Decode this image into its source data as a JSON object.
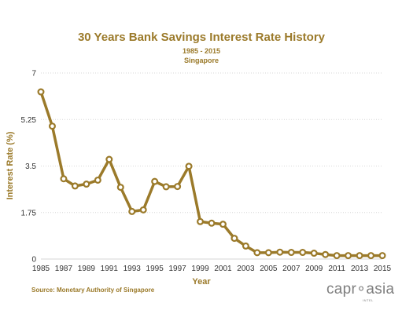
{
  "colors": {
    "series": "#9B7A2A",
    "title": "#9B7A2A",
    "grid": "#d6d6d6",
    "marker_fill": "#ffffff"
  },
  "chart_data": {
    "type": "line",
    "title": "30 Years Bank Savings Interest Rate History",
    "subtitle_line1": "1985 - 2015",
    "subtitle_line2": "Singapore",
    "xlabel": "Year",
    "ylabel": "Interest Rate (%)",
    "ylim": [
      0,
      7
    ],
    "xlim": [
      1985,
      2015
    ],
    "y_ticks": [
      "0",
      "1.75",
      "3.5",
      "5.25",
      "7"
    ],
    "y_tick_values": [
      0,
      1.75,
      3.5,
      5.25,
      7
    ],
    "x_ticks": [
      "1985",
      "1987",
      "1989",
      "1991",
      "1993",
      "1995",
      "1997",
      "1999",
      "2001",
      "2003",
      "2005",
      "2007",
      "2009",
      "2011",
      "2013",
      "2015"
    ],
    "x_tick_values": [
      1985,
      1987,
      1989,
      1991,
      1993,
      1995,
      1997,
      1999,
      2001,
      2003,
      2005,
      2007,
      2009,
      2011,
      2013,
      2015
    ],
    "grid": "horizontal",
    "x": [
      1985,
      1986,
      1987,
      1988,
      1989,
      1990,
      1991,
      1992,
      1993,
      1994,
      1995,
      1996,
      1997,
      1998,
      1999,
      2000,
      2001,
      2002,
      2003,
      2004,
      2005,
      2006,
      2007,
      2008,
      2009,
      2010,
      2011,
      2012,
      2013,
      2014,
      2015
    ],
    "values": [
      6.29,
      5.0,
      3.02,
      2.75,
      2.82,
      2.97,
      3.75,
      2.7,
      1.79,
      1.85,
      2.92,
      2.72,
      2.73,
      3.49,
      1.41,
      1.35,
      1.31,
      0.78,
      0.49,
      0.24,
      0.24,
      0.26,
      0.25,
      0.25,
      0.22,
      0.17,
      0.13,
      0.13,
      0.13,
      0.13,
      0.13
    ]
  },
  "source": "Source: Monetary Authority of Singapore",
  "logo": {
    "text": "capr∘asia",
    "sub": "INTEL"
  }
}
